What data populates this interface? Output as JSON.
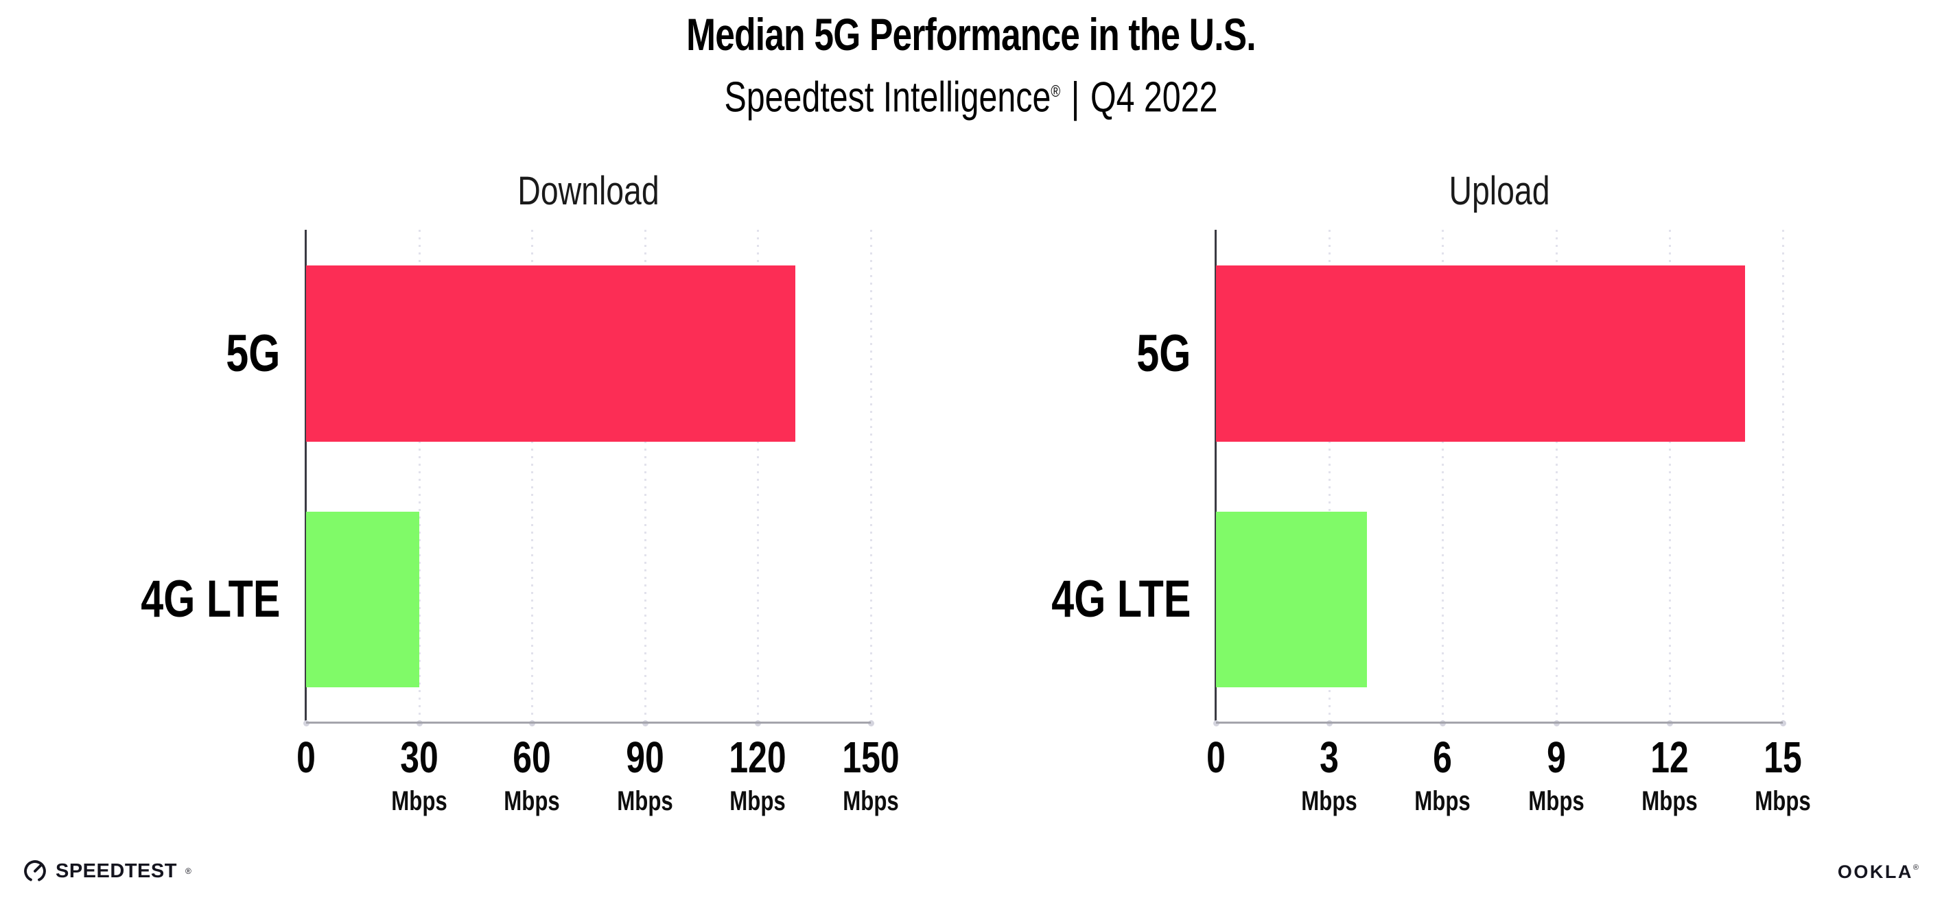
{
  "header": {
    "title": "Median 5G Performance in the U.S.",
    "subtitle_brand": "Speedtest Intelligence",
    "subtitle_reg": "®",
    "subtitle_separator": "|",
    "subtitle_period": "Q4 2022"
  },
  "chart_data": [
    {
      "type": "bar",
      "orientation": "horizontal",
      "title": "Download",
      "categories": [
        "5G",
        "4G LTE"
      ],
      "values": [
        130,
        30
      ],
      "unit": "Mbps",
      "xlim": [
        0,
        150
      ],
      "xticks": [
        0,
        30,
        60,
        90,
        120,
        150
      ],
      "tick_unit_label": "Mbps",
      "grid": "vertical-dotted",
      "legend": "none",
      "bar_colors": [
        "#FC2D55",
        "#80FA68"
      ]
    },
    {
      "type": "bar",
      "orientation": "horizontal",
      "title": "Upload",
      "categories": [
        "5G",
        "4G LTE"
      ],
      "values": [
        14,
        4
      ],
      "unit": "Mbps",
      "xlim": [
        0,
        15
      ],
      "xticks": [
        0,
        3,
        6,
        9,
        12,
        15
      ],
      "tick_unit_label": "Mbps",
      "grid": "vertical-dotted",
      "legend": "none",
      "bar_colors": [
        "#FC2D55",
        "#80FA68"
      ]
    }
  ],
  "colors": {
    "bar_5g": "#FC2D55",
    "bar_4g_lte": "#80FA68",
    "gridline": "#E2E2EC",
    "y_axis_line": "#3B3B43",
    "baseline": "#A4A4AC",
    "text": "#000000"
  },
  "footer": {
    "speedtest_icon": "speedometer-gauge-icon",
    "speedtest_logo_text": "SPEEDTEST",
    "speedtest_reg": "®",
    "ookla_logo_text": "OOKLA",
    "ookla_reg": "®"
  }
}
